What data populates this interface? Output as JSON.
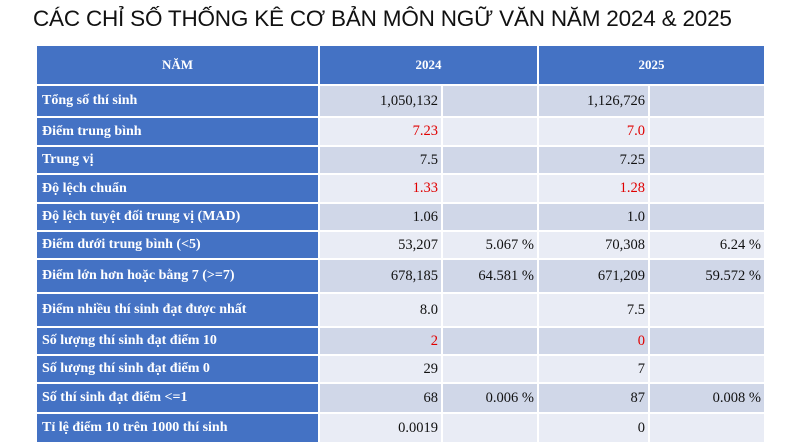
{
  "title": "CÁC CHỈ SỐ THỐNG KÊ CƠ BẢN MÔN NGỮ VĂN NĂM 2024 & 2025",
  "header": {
    "col0": "NĂM",
    "col1": "2024",
    "col2": "2025"
  },
  "rows": [
    {
      "label": "Tổng số thí sinh",
      "v2024": "1,050,132",
      "p2024": "",
      "v2025": "1,126,726",
      "p2025": ""
    },
    {
      "label": "Điểm trung bình",
      "v2024": "7.23",
      "p2024": "",
      "v2025": "7.0",
      "p2025": ""
    },
    {
      "label": "Trung vị",
      "v2024": "7.5",
      "p2024": "",
      "v2025": "7.25",
      "p2025": ""
    },
    {
      "label": "Độ lệch chuẩn",
      "v2024": "1.33",
      "p2024": "",
      "v2025": "1.28",
      "p2025": ""
    },
    {
      "label": "Độ lệch tuyệt đối trung vị (MAD)",
      "v2024": "1.06",
      "p2024": "",
      "v2025": "1.0",
      "p2025": ""
    },
    {
      "label": "Điểm dưới trung bình (<5)",
      "v2024": "53,207",
      "p2024": "5.067 %",
      "v2025": "70,308",
      "p2025": "6.24 %"
    },
    {
      "label": "Điểm lớn hơn hoặc bằng 7 (>=7)",
      "v2024": "678,185",
      "p2024": "64.581 %",
      "v2025": "671,209",
      "p2025": "59.572 %"
    },
    {
      "label": "Điểm nhiều thí sinh đạt được nhất",
      "v2024": "8.0",
      "p2024": "",
      "v2025": "7.5",
      "p2025": ""
    },
    {
      "label": "Số lượng thí sinh đạt điểm 10",
      "v2024": "2",
      "p2024": "",
      "v2025": "0",
      "p2025": ""
    },
    {
      "label": "Số lượng thí sinh đạt điểm 0",
      "v2024": "29",
      "p2024": "",
      "v2025": "7",
      "p2025": ""
    },
    {
      "label": "Số thí sinh đạt điểm <=1",
      "v2024": "68",
      "p2024": "0.006 %",
      "v2025": "87",
      "p2025": "0.008 %"
    },
    {
      "label": "Tỉ lệ điểm 10 trên 1000 thí sinh",
      "v2024": "0.0019",
      "p2024": "",
      "v2025": "0",
      "p2025": ""
    }
  ],
  "colors": {
    "header_bg": "#4472c4",
    "row_dark": "#d0d7e8",
    "row_light": "#e9ecf5",
    "highlight": "#e00000"
  }
}
